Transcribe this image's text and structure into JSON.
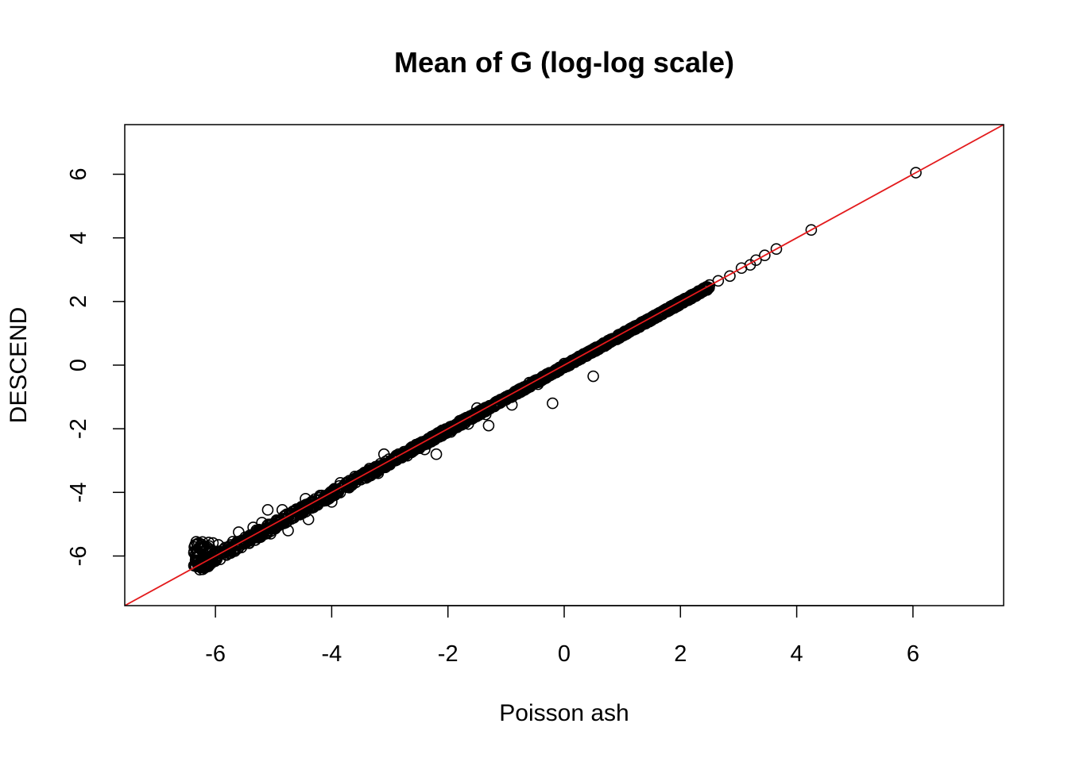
{
  "chart_data": {
    "type": "scatter",
    "title": "Mean of G (log-log scale)",
    "xlabel": "Poisson ash",
    "ylabel": "DESCEND",
    "xlim": [
      -7.56,
      7.56
    ],
    "ylim": [
      -7.56,
      7.56
    ],
    "xticks": [
      -6,
      -4,
      -2,
      0,
      2,
      4,
      6
    ],
    "yticks": [
      -6,
      -4,
      -2,
      0,
      2,
      4,
      6
    ],
    "xtick_labels": [
      "-6",
      "-4",
      "-2",
      "0",
      "2",
      "4",
      "6"
    ],
    "ytick_labels": [
      "-6",
      "-4",
      "-2",
      "0",
      "2",
      "4",
      "6"
    ],
    "grid": false,
    "point_style": "open-circle",
    "point_color": "#000000",
    "reference_line": {
      "type": "identity",
      "intercept": 0,
      "slope": 1,
      "color": "#e31a1c"
    },
    "series": [
      {
        "points": [
          [
            -6.35,
            -6.3
          ],
          [
            -6.3,
            -6.05
          ],
          [
            -6.28,
            -5.75
          ],
          [
            -6.2,
            -5.7
          ],
          [
            -6.15,
            -6.1
          ],
          [
            -6.1,
            -5.8
          ],
          [
            -6.05,
            -6.2
          ],
          [
            -5.95,
            -5.65
          ],
          [
            -5.85,
            -5.9
          ],
          [
            -5.7,
            -5.55
          ],
          [
            -5.6,
            -5.25
          ],
          [
            -5.5,
            -5.5
          ],
          [
            -5.35,
            -5.1
          ],
          [
            -5.3,
            -5.25
          ],
          [
            -5.2,
            -4.95
          ],
          [
            -5.1,
            -4.55
          ],
          [
            -5.05,
            -5.3
          ],
          [
            -4.95,
            -4.95
          ],
          [
            -4.85,
            -4.55
          ],
          [
            -4.75,
            -5.2
          ],
          [
            -4.65,
            -4.8
          ],
          [
            -4.55,
            -4.7
          ],
          [
            -4.45,
            -4.2
          ],
          [
            -4.4,
            -4.85
          ],
          [
            -4.35,
            -4.4
          ],
          [
            -4.2,
            -4.1
          ],
          [
            -4.1,
            -4.15
          ],
          [
            -4.0,
            -4.3
          ],
          [
            -3.95,
            -3.9
          ],
          [
            -3.85,
            -3.7
          ],
          [
            -3.7,
            -3.85
          ],
          [
            -3.6,
            -3.5
          ],
          [
            -3.5,
            -3.6
          ],
          [
            -3.35,
            -3.25
          ],
          [
            -3.2,
            -3.4
          ],
          [
            -3.1,
            -2.8
          ],
          [
            -3.0,
            -3.05
          ],
          [
            -2.85,
            -2.8
          ],
          [
            -2.7,
            -2.85
          ],
          [
            -2.55,
            -2.5
          ],
          [
            -2.4,
            -2.65
          ],
          [
            -2.2,
            -2.8
          ],
          [
            -2.1,
            -2.05
          ],
          [
            -1.95,
            -2.1
          ],
          [
            -1.8,
            -1.75
          ],
          [
            -1.65,
            -1.85
          ],
          [
            -1.5,
            -1.35
          ],
          [
            -1.35,
            -1.55
          ],
          [
            -1.3,
            -1.9
          ],
          [
            -1.2,
            -1.3
          ],
          [
            -1.05,
            -1.1
          ],
          [
            -0.9,
            -1.25
          ],
          [
            -0.75,
            -0.85
          ],
          [
            -0.6,
            -0.55
          ],
          [
            -0.45,
            -0.6
          ],
          [
            -0.3,
            -0.35
          ],
          [
            -0.2,
            -1.2
          ],
          [
            -0.15,
            -0.2
          ],
          [
            0.0,
            0.05
          ],
          [
            0.15,
            0.1
          ],
          [
            0.3,
            0.25
          ],
          [
            0.5,
            -0.35
          ],
          [
            0.55,
            0.45
          ],
          [
            0.7,
            0.6
          ],
          [
            0.9,
            0.85
          ],
          [
            1.1,
            1.05
          ],
          [
            1.3,
            1.2
          ],
          [
            1.5,
            1.4
          ],
          [
            1.7,
            1.65
          ],
          [
            1.9,
            1.85
          ],
          [
            2.1,
            2.05
          ],
          [
            2.25,
            2.25
          ],
          [
            2.45,
            2.4
          ],
          [
            2.65,
            2.65
          ],
          [
            2.85,
            2.8
          ],
          [
            3.05,
            3.05
          ],
          [
            3.2,
            3.15
          ],
          [
            3.3,
            3.3
          ],
          [
            3.45,
            3.45
          ],
          [
            3.65,
            3.65
          ],
          [
            4.25,
            4.25
          ],
          [
            6.05,
            6.05
          ]
        ]
      }
    ]
  }
}
